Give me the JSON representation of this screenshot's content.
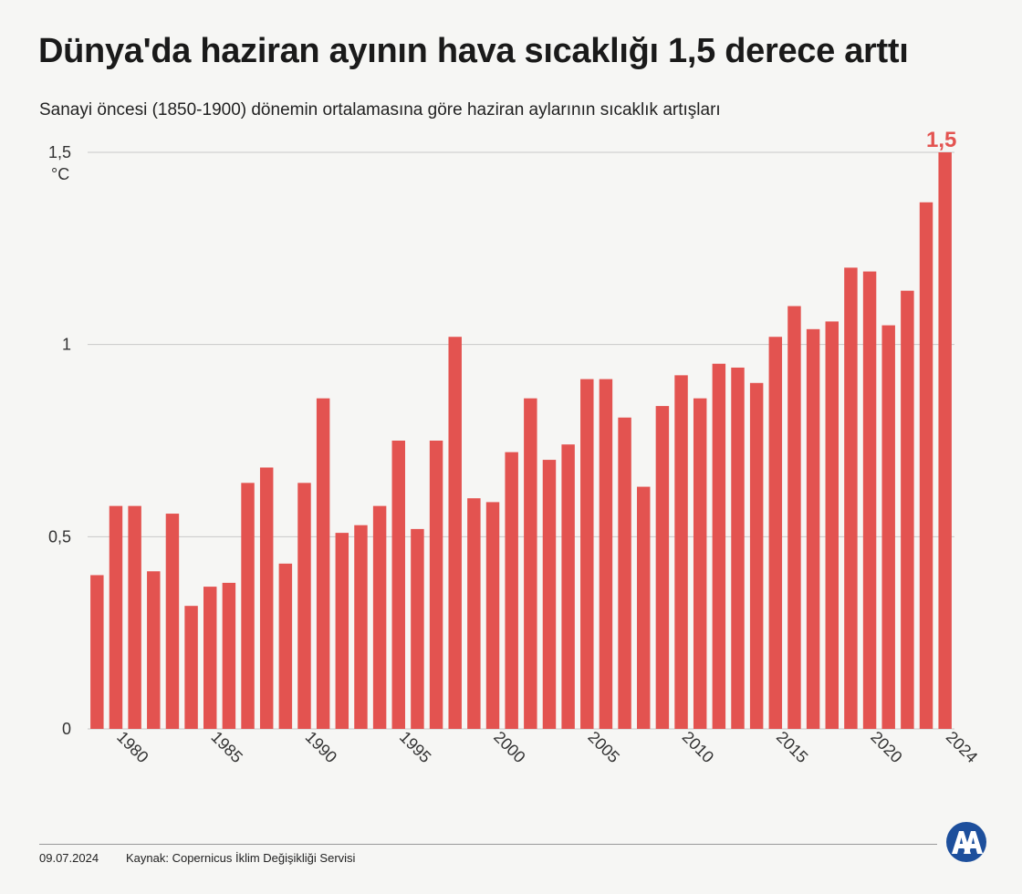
{
  "title": "Dünya'da haziran ayının hava sıcaklığı 1,5 derece arttı",
  "subtitle": "Sanayi öncesi (1850-1900) dönemin ortalamasına göre haziran aylarının sıcaklık artışları",
  "footer": {
    "date": "09.07.2024",
    "source": "Kaynak: Copernicus İklim Değişikliği Servisi"
  },
  "logo": {
    "icon": "aa-logo",
    "text": "AA"
  },
  "colors": {
    "bar": "#e35350",
    "highlight": "#e35350",
    "grid": "#c8c8c8"
  },
  "chart_data": {
    "type": "bar",
    "title": "Dünya'da haziran ayının hava sıcaklığı 1,5 derece arttı",
    "subtitle": "Sanayi öncesi (1850-1900) dönemin ortalamasına göre haziran aylarının sıcaklık artışları",
    "xlabel": "",
    "ylabel": "°C",
    "ylim": [
      0,
      1.5
    ],
    "yticks": [
      {
        "value": 0,
        "label": "0"
      },
      {
        "value": 0.5,
        "label": "0,5"
      },
      {
        "value": 1,
        "label": "1"
      },
      {
        "value": 1.5,
        "label": "1,5"
      }
    ],
    "xtick_labels": [
      "1980",
      "1985",
      "1990",
      "1995",
      "2000",
      "2005",
      "2010",
      "2015",
      "2020",
      "2024"
    ],
    "grid": true,
    "categories": [
      1979,
      1980,
      1981,
      1982,
      1983,
      1984,
      1985,
      1986,
      1987,
      1988,
      1989,
      1990,
      1991,
      1992,
      1993,
      1994,
      1995,
      1996,
      1997,
      1998,
      1999,
      2000,
      2001,
      2002,
      2003,
      2004,
      2005,
      2006,
      2007,
      2008,
      2009,
      2010,
      2011,
      2012,
      2013,
      2014,
      2015,
      2016,
      2017,
      2018,
      2019,
      2020,
      2021,
      2022,
      2023,
      2024
    ],
    "values": [
      0.4,
      0.58,
      0.58,
      0.41,
      0.56,
      0.32,
      0.37,
      0.38,
      0.64,
      0.68,
      0.43,
      0.64,
      0.86,
      0.51,
      0.53,
      0.58,
      0.75,
      0.52,
      0.75,
      1.02,
      0.6,
      0.59,
      0.72,
      0.86,
      0.7,
      0.74,
      0.91,
      0.91,
      0.81,
      0.63,
      0.84,
      0.92,
      0.86,
      0.95,
      0.94,
      0.9,
      1.02,
      1.1,
      1.04,
      1.06,
      1.2,
      1.19,
      1.05,
      1.14,
      1.37,
      1.5
    ],
    "highlight_label": {
      "year": 2024,
      "text": "1,5"
    }
  }
}
